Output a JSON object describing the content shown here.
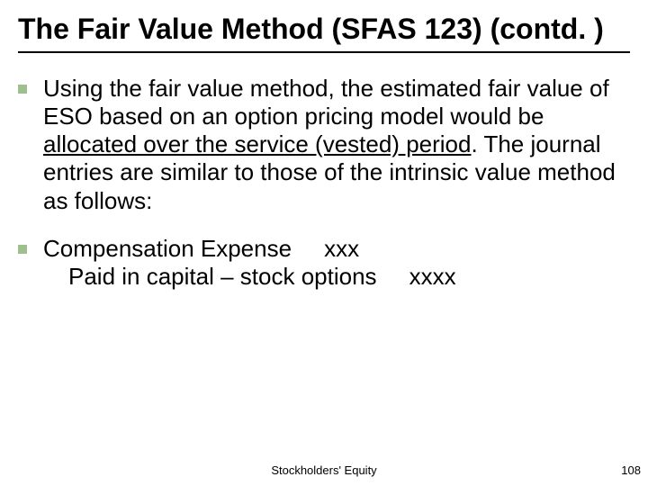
{
  "title": "The Fair Value Method (SFAS 123) (contd. )",
  "bullets": [
    {
      "before": "Using the fair value method, the estimated fair value of ESO based on an option pricing model would be ",
      "underlined": "allocated over the service (vested) period",
      "after": ". The journal entries are similar to those of the intrinsic value method as follows:"
    }
  ],
  "entry": {
    "line1": "Compensation Expense     xxx",
    "line2": "Paid in capital – stock options     xxxx"
  },
  "footer": {
    "center": "Stockholders' Equity",
    "page": "108"
  },
  "colors": {
    "bullet": "#9fbf8f",
    "text": "#000000",
    "background": "#ffffff"
  }
}
